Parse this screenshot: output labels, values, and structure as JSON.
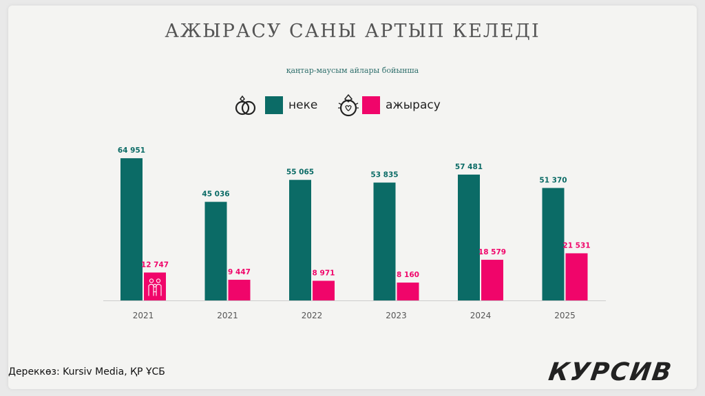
{
  "title": "АЖЫРАСУ САНЫ АРТЫП КЕЛЕДІ",
  "subtitle": "қаңтар-маусым айлары бойынша",
  "source": "Дереккөз: Kursiv Media, ҚР ҰСБ",
  "logo_text": "КУРСИВ",
  "legend_icons": [
    "wedding-rings-icon",
    "broken-ring-icon"
  ],
  "colors": {
    "marriage": "#0b6b66",
    "divorce": "#f0056a",
    "axis": "#cccccc"
  },
  "chart_data": {
    "type": "bar",
    "categories": [
      "2021",
      "2021",
      "2022",
      "2023",
      "2024",
      "2025"
    ],
    "series": [
      {
        "name": "неке",
        "values": [
          64951,
          45036,
          55065,
          53835,
          57481,
          51370
        ],
        "labels": [
          "64 951",
          "45 036",
          "55 065",
          "53 835",
          "57 481",
          "51 370"
        ]
      },
      {
        "name": "ажырасу",
        "values": [
          12747,
          9447,
          8971,
          8160,
          18579,
          21531
        ],
        "labels": [
          "12 747",
          "9 447",
          "8 971",
          "8 160",
          "18 579",
          "21 531"
        ]
      }
    ],
    "title": "АЖЫРАСУ САНЫ АРТЫП КЕЛЕДІ",
    "subtitle": "қаңтар-маусым айлары бойынша",
    "ylim": [
      0,
      65000
    ],
    "grid": false,
    "legend": "top-center"
  }
}
